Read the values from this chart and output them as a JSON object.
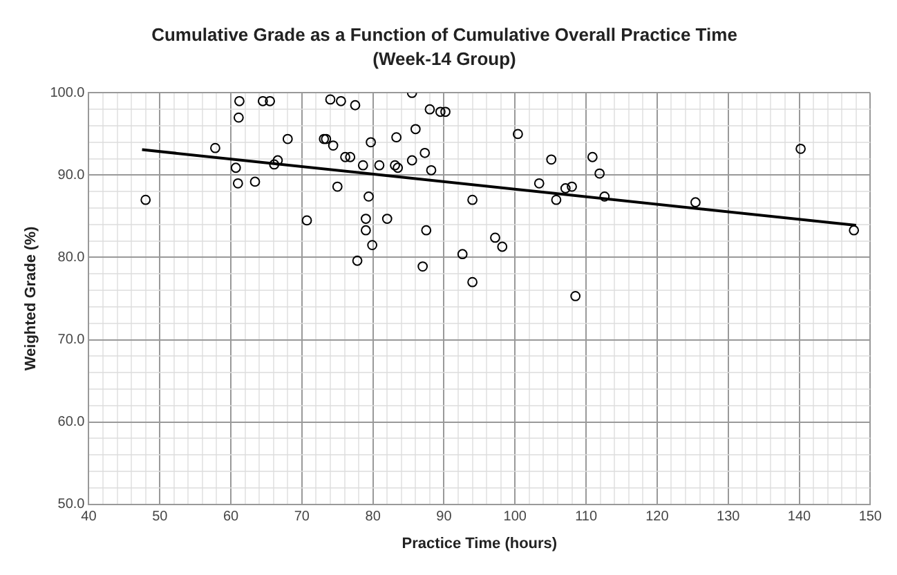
{
  "chart_data": {
    "type": "scatter",
    "title": "Cumulative Grade as a Function of Cumulative Overall Practice Time",
    "subtitle": "(Week-14 Group)",
    "xlabel": "Practice Time (hours)",
    "ylabel": "Weighted Grade (%)",
    "xlim": [
      40,
      150
    ],
    "ylim": [
      50,
      100
    ],
    "xticks": [
      40,
      {
        "value": 42,
        "label": null
      },
      {
        "value": 44,
        "label": null
      },
      {
        "value": 46,
        "label": null
      },
      {
        "value": 48,
        "label": null
      },
      50,
      {
        "value": 52,
        "label": null
      },
      {
        "value": 54,
        "label": null
      },
      {
        "value": 56,
        "label": null
      },
      {
        "value": 58,
        "label": null
      },
      60,
      {
        "value": 62,
        "label": null
      },
      {
        "value": 64,
        "label": null
      },
      {
        "value": 66,
        "label": null
      },
      {
        "value": 68,
        "label": null
      },
      70,
      {
        "value": 72,
        "label": null
      },
      {
        "value": 74,
        "label": null
      },
      {
        "value": 76,
        "label": null
      },
      {
        "value": 78,
        "label": null
      },
      80,
      {
        "value": 82,
        "label": null
      },
      {
        "value": 84,
        "label": null
      },
      {
        "value": 86,
        "label": null
      },
      {
        "value": 88,
        "label": null
      },
      90,
      {
        "value": 92,
        "label": null
      },
      {
        "value": 94,
        "label": null
      },
      {
        "value": 96,
        "label": null
      },
      {
        "value": 98,
        "label": null
      },
      100,
      {
        "value": 102,
        "label": null
      },
      {
        "value": 104,
        "label": null
      },
      {
        "value": 106,
        "label": null
      },
      {
        "value": 108,
        "label": null
      },
      110,
      {
        "value": 112,
        "label": null
      },
      {
        "value": 114,
        "label": null
      },
      {
        "value": 116,
        "label": null
      },
      {
        "value": 118,
        "label": null
      },
      120,
      {
        "value": 122,
        "label": null
      },
      {
        "value": 124,
        "label": null
      },
      {
        "value": 126,
        "label": null
      },
      {
        "value": 128,
        "label": null
      },
      130,
      {
        "value": 132,
        "label": null
      },
      {
        "value": 134,
        "label": null
      },
      {
        "value": 136,
        "label": null
      },
      {
        "value": 138,
        "label": null
      },
      140,
      {
        "value": 142,
        "label": null
      },
      {
        "value": 144,
        "label": null
      },
      {
        "value": 146,
        "label": null
      },
      {
        "value": 148,
        "label": null
      },
      150
    ],
    "yticks": [
      {
        "value": 50,
        "label": "50.0"
      },
      {
        "value": 52,
        "label": null
      },
      {
        "value": 54,
        "label": null
      },
      {
        "value": 56,
        "label": null
      },
      {
        "value": 58,
        "label": null
      },
      {
        "value": 60,
        "label": "60.0"
      },
      {
        "value": 62,
        "label": null
      },
      {
        "value": 64,
        "label": null
      },
      {
        "value": 66,
        "label": null
      },
      {
        "value": 68,
        "label": null
      },
      {
        "value": 70,
        "label": "70.0"
      },
      {
        "value": 72,
        "label": null
      },
      {
        "value": 74,
        "label": null
      },
      {
        "value": 76,
        "label": null
      },
      {
        "value": 78,
        "label": null
      },
      {
        "value": 80,
        "label": "80.0"
      },
      {
        "value": 82,
        "label": null
      },
      {
        "value": 84,
        "label": null
      },
      {
        "value": 86,
        "label": null
      },
      {
        "value": 88,
        "label": null
      },
      {
        "value": 90,
        "label": "90.0"
      },
      {
        "value": 92,
        "label": null
      },
      {
        "value": 94,
        "label": null
      },
      {
        "value": 96,
        "label": null
      },
      {
        "value": 98,
        "label": null
      },
      {
        "value": 100,
        "label": "100.0"
      }
    ],
    "grid": true,
    "legend": false,
    "marker": "circle",
    "series": [
      {
        "type": "scatter",
        "color": "#000000",
        "x": [
          48.0,
          57.8,
          60.7,
          61.0,
          63.4,
          61.1,
          61.2,
          64.5,
          65.5,
          68.0,
          66.6,
          66.1,
          70.7,
          73.1,
          74.0,
          75.5,
          77.5,
          85.5,
          89.5,
          88.0,
          90.2,
          73.4,
          74.4,
          79.7,
          83.3,
          86.0,
          76.1,
          76.8,
          78.6,
          80.9,
          83.1,
          83.5,
          85.5,
          87.3,
          88.2,
          75.0,
          79.4,
          79.0,
          79.0,
          82.0,
          79.9,
          77.8,
          87.5,
          87.0,
          94.0,
          92.6,
          94.0,
          97.2,
          98.2,
          100.4,
          103.4,
          105.1,
          105.8,
          107.1,
          108.0,
          108.5,
          110.9,
          111.9,
          112.6,
          125.4,
          140.2,
          147.7
        ],
        "values": [
          87.0,
          93.3,
          90.9,
          89.0,
          89.2,
          97.0,
          99.0,
          99.0,
          99.0,
          94.4,
          91.8,
          91.3,
          84.5,
          94.4,
          99.2,
          99.0,
          98.5,
          100.0,
          97.7,
          98.0,
          97.7,
          94.4,
          93.6,
          94.0,
          94.6,
          95.6,
          92.2,
          92.2,
          91.2,
          91.2,
          91.2,
          90.9,
          91.8,
          92.7,
          90.6,
          88.6,
          87.4,
          84.7,
          83.3,
          84.7,
          81.5,
          79.6,
          83.3,
          78.9,
          87.0,
          80.4,
          77.0,
          82.4,
          81.3,
          95.0,
          89.0,
          91.9,
          87.0,
          88.4,
          88.6,
          75.3,
          92.2,
          90.2,
          87.4,
          86.7,
          93.2,
          83.3
        ]
      },
      {
        "type": "line",
        "color": "#000000",
        "marker": "none",
        "x": [
          47.5,
          148.0
        ],
        "values": [
          93.1,
          83.9
        ]
      }
    ]
  }
}
